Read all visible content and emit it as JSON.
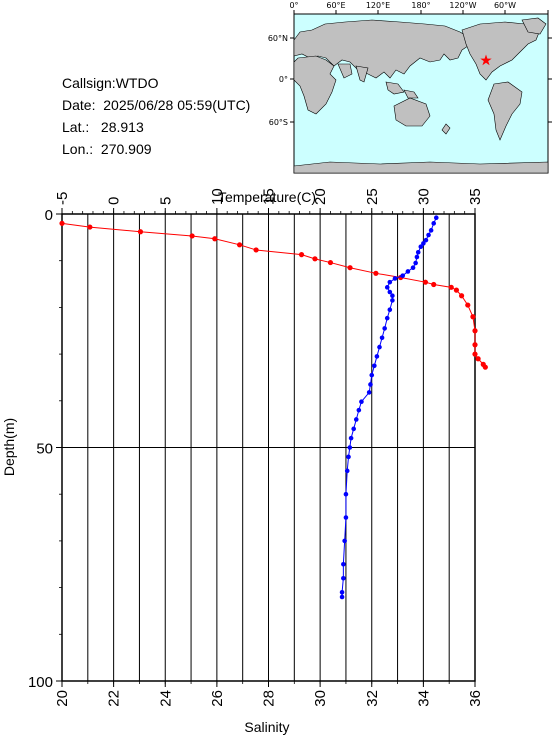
{
  "station": {
    "callsign_label": "Callsign:",
    "callsign": "WTDO",
    "date_label": "Date:",
    "date": "2025/06/28 05:59(UTC)",
    "lat_label": "Lat.:",
    "lat": "28.913",
    "lon_label": "Lon.:",
    "lon": "270.909"
  },
  "map": {
    "lon_labels": [
      "0°",
      "60°E",
      "120°E",
      "180°",
      "120°W",
      "60°W"
    ],
    "lat_labels": [
      "60°N",
      "0°",
      "60°S"
    ],
    "colors": {
      "ocean": "#ccffff",
      "land": "#c0c0c0",
      "marker": "#ff0000"
    },
    "marker_icon": "red-star-icon"
  },
  "chart_data": {
    "type": "line",
    "ylabel": "Depth(m)",
    "ylim": [
      100,
      0
    ],
    "y_ticks": [
      0,
      50,
      100
    ],
    "grid": true,
    "x_axes": [
      {
        "position": "top",
        "label": "Temperature(C)",
        "xlim": [
          -5,
          35
        ],
        "ticks": [
          -5,
          0,
          5,
          10,
          15,
          20,
          25,
          30,
          35
        ]
      },
      {
        "position": "bottom",
        "label": "Salinity",
        "xlim": [
          20,
          36
        ],
        "ticks": [
          20,
          22,
          24,
          26,
          28,
          30,
          32,
          34,
          36
        ]
      }
    ],
    "series": [
      {
        "axis": "Temperature(C)",
        "color": "#ff0000",
        "points": [
          [
            -5,
            2.0
          ],
          [
            -2.3,
            2.8
          ],
          [
            2.6,
            3.8
          ],
          [
            7.6,
            4.7
          ],
          [
            9.8,
            5.3
          ],
          [
            12.2,
            6.6
          ],
          [
            13.8,
            7.7
          ],
          [
            18.2,
            8.7
          ],
          [
            19.5,
            9.6
          ],
          [
            21.0,
            10.4
          ],
          [
            22.9,
            11.5
          ],
          [
            25.4,
            12.7
          ],
          [
            27.8,
            13.6
          ],
          [
            30.2,
            14.6
          ],
          [
            31.0,
            15.1
          ],
          [
            32.7,
            15.7
          ],
          [
            33.2,
            16.3
          ],
          [
            33.7,
            17.5
          ],
          [
            34.3,
            19.5
          ],
          [
            34.8,
            22.0
          ],
          [
            35.0,
            25.0
          ],
          [
            35.0,
            28.0
          ],
          [
            35.0,
            30.0
          ],
          [
            35.3,
            31.0
          ],
          [
            35.8,
            32.2
          ],
          [
            36.0,
            32.8
          ]
        ]
      },
      {
        "axis": "Salinity",
        "color": "#0000ff",
        "points": [
          [
            34.5,
            0.8
          ],
          [
            34.4,
            2.0
          ],
          [
            34.3,
            3.5
          ],
          [
            34.2,
            4.5
          ],
          [
            34.1,
            5.6
          ],
          [
            34.0,
            6.3
          ],
          [
            33.9,
            7.0
          ],
          [
            33.8,
            8.2
          ],
          [
            33.75,
            9.2
          ],
          [
            33.7,
            10.5
          ],
          [
            33.6,
            11.5
          ],
          [
            33.4,
            12.3
          ],
          [
            33.2,
            13.2
          ],
          [
            32.9,
            13.8
          ],
          [
            32.7,
            14.6
          ],
          [
            32.6,
            15.7
          ],
          [
            32.7,
            16.7
          ],
          [
            32.8,
            17.5
          ],
          [
            32.8,
            18.5
          ],
          [
            32.7,
            20.5
          ],
          [
            32.6,
            22.3
          ],
          [
            32.5,
            24.5
          ],
          [
            32.4,
            26.5
          ],
          [
            32.3,
            28.5
          ],
          [
            32.2,
            30.5
          ],
          [
            32.1,
            32.5
          ],
          [
            32.0,
            34.5
          ],
          [
            31.95,
            36.5
          ],
          [
            31.9,
            38.2
          ],
          [
            31.6,
            40.2
          ],
          [
            31.5,
            42.0
          ],
          [
            31.4,
            44.0
          ],
          [
            31.3,
            46.0
          ],
          [
            31.2,
            48.0
          ],
          [
            31.15,
            50.0
          ],
          [
            31.1,
            52.0
          ],
          [
            31.05,
            55.0
          ],
          [
            31.0,
            60.0
          ],
          [
            31.0,
            65.0
          ],
          [
            30.95,
            70.0
          ],
          [
            30.9,
            75.0
          ],
          [
            30.9,
            78.0
          ],
          [
            30.85,
            81.0
          ],
          [
            30.85,
            82.0
          ]
        ]
      }
    ]
  }
}
